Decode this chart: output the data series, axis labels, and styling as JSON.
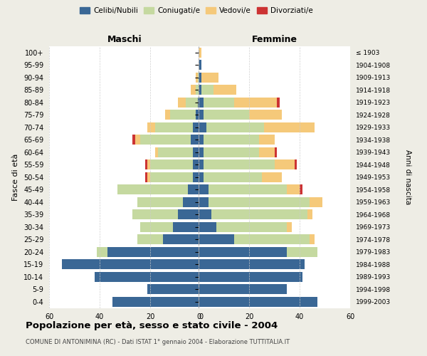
{
  "age_groups": [
    "0-4",
    "5-9",
    "10-14",
    "15-19",
    "20-24",
    "25-29",
    "30-34",
    "35-39",
    "40-44",
    "45-49",
    "50-54",
    "55-59",
    "60-64",
    "65-69",
    "70-74",
    "75-79",
    "80-84",
    "85-89",
    "90-94",
    "95-99",
    "100+"
  ],
  "birth_years": [
    "1999-2003",
    "1994-1998",
    "1989-1993",
    "1984-1988",
    "1979-1983",
    "1974-1978",
    "1969-1973",
    "1964-1968",
    "1959-1963",
    "1954-1958",
    "1949-1953",
    "1944-1948",
    "1939-1943",
    "1934-1938",
    "1929-1933",
    "1924-1928",
    "1919-1923",
    "1914-1918",
    "1909-1913",
    "1904-1908",
    "≤ 1903"
  ],
  "colors": {
    "celibe": "#3a6795",
    "coniugato": "#c5d9a0",
    "vedovo": "#f5c97a",
    "divorziato": "#cc3333"
  },
  "maschi": {
    "celibe": [
      35,
      21,
      42,
      55,
      37,
      15,
      11,
      9,
      7,
      5,
      3,
      3,
      3,
      4,
      3,
      2,
      1,
      0,
      0,
      0,
      0
    ],
    "coniugato": [
      0,
      0,
      0,
      0,
      4,
      10,
      13,
      18,
      18,
      28,
      17,
      17,
      14,
      20,
      15,
      10,
      5,
      2,
      1,
      0,
      0
    ],
    "vedovo": [
      0,
      0,
      0,
      0,
      0,
      0,
      0,
      0,
      0,
      0,
      1,
      1,
      1,
      2,
      3,
      2,
      3,
      2,
      1,
      0,
      0
    ],
    "divorziato": [
      0,
      0,
      0,
      0,
      0,
      0,
      0,
      0,
      0,
      0,
      1,
      1,
      0,
      1,
      0,
      0,
      0,
      0,
      0,
      0,
      0
    ]
  },
  "femmine": {
    "celibe": [
      47,
      35,
      41,
      42,
      35,
      14,
      7,
      5,
      4,
      4,
      2,
      2,
      2,
      2,
      3,
      2,
      2,
      1,
      1,
      1,
      0
    ],
    "coniugato": [
      0,
      0,
      0,
      0,
      12,
      30,
      28,
      38,
      40,
      31,
      23,
      28,
      22,
      22,
      23,
      18,
      12,
      5,
      0,
      0,
      0
    ],
    "vedovo": [
      0,
      0,
      0,
      0,
      0,
      2,
      2,
      2,
      5,
      5,
      8,
      8,
      6,
      6,
      20,
      13,
      17,
      9,
      7,
      0,
      1
    ],
    "divorziato": [
      0,
      0,
      0,
      0,
      0,
      0,
      0,
      0,
      0,
      1,
      0,
      1,
      1,
      0,
      0,
      0,
      1,
      0,
      0,
      0,
      0
    ]
  },
  "xlim": 60,
  "title": "Popolazione per età, sesso e stato civile - 2004",
  "subtitle": "COMUNE DI ANTONIMINA (RC) - Dati ISTAT 1° gennaio 2004 - Elaborazione TUTTITALIA.IT",
  "ylabel_left": "Fasce di età",
  "ylabel_right": "Anni di nascita",
  "xlabel_maschi": "Maschi",
  "xlabel_femmine": "Femmine",
  "bg_color": "#eeede5",
  "plot_bg": "#ffffff",
  "grid_color": "#cccccc",
  "dashed_color": "#aaaaaa"
}
